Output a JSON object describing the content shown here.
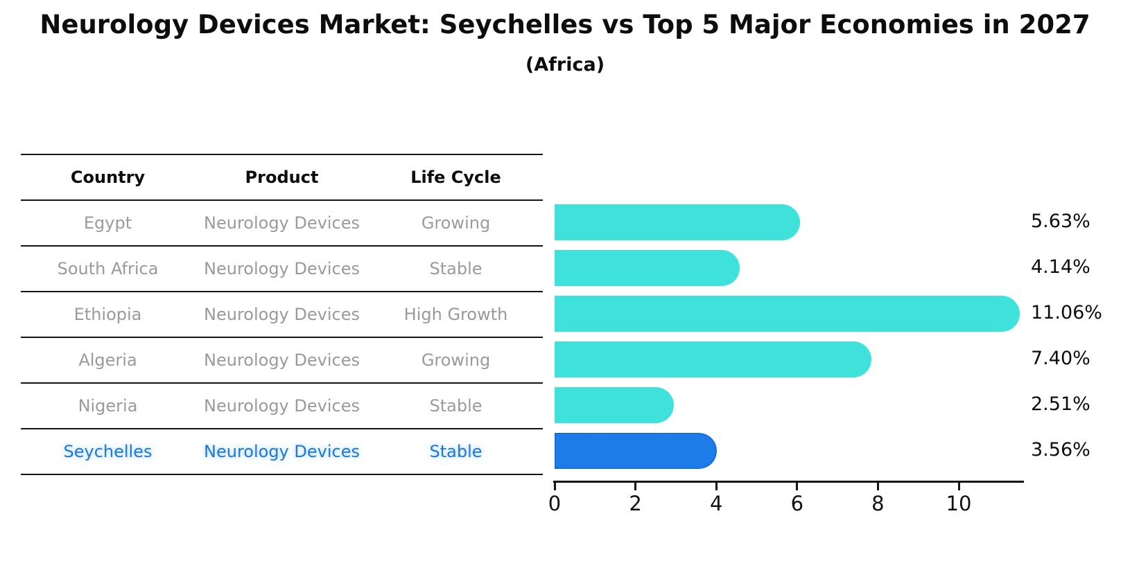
{
  "title": "Neurology Devices Market: Seychelles vs Top 5 Major Economies in 2027",
  "subtitle": "(Africa)",
  "table": {
    "headers": [
      "Country",
      "Product",
      "Life Cycle"
    ],
    "rows": [
      {
        "country": "Egypt",
        "product": "Neurology Devices",
        "life_cycle": "Growing"
      },
      {
        "country": "South Africa",
        "product": "Neurology Devices",
        "life_cycle": "Stable"
      },
      {
        "country": "Ethiopia",
        "product": "Neurology Devices",
        "life_cycle": "High Growth"
      },
      {
        "country": "Algeria",
        "product": "Neurology Devices",
        "life_cycle": "Growing"
      },
      {
        "country": "Nigeria",
        "product": "Neurology Devices",
        "life_cycle": "Stable"
      },
      {
        "country": "Seychelles",
        "product": "Neurology Devices",
        "life_cycle": "Stable"
      }
    ]
  },
  "chart_data": {
    "type": "bar",
    "orientation": "horizontal",
    "title": "Neurology Devices Market: Seychelles vs Top 5 Major Economies in 2027 (Africa)",
    "categories": [
      "Egypt",
      "South Africa",
      "Ethiopia",
      "Algeria",
      "Nigeria",
      "Seychelles"
    ],
    "values": [
      5.63,
      4.14,
      11.06,
      7.4,
      2.51,
      3.56
    ],
    "value_labels": [
      "5.63%",
      "4.14%",
      "11.06%",
      "7.40%",
      "2.51%",
      "3.56%"
    ],
    "xticks": [
      0,
      2,
      4,
      6,
      8,
      10
    ],
    "xlim": [
      0,
      11.7
    ],
    "grid": false,
    "legend": "none",
    "bar_color": "#3FE2DB",
    "highlight_color": "#1E7CE8",
    "highlight_index": 5,
    "highlight_category": "Seychelles"
  },
  "colors": {
    "background": "#FFFFFF",
    "bar_cyan": "#3FE2DB",
    "bar_blue": "#1E7CE8",
    "highlight_border": "#1360CF",
    "highlight_text": "#2278D2",
    "table_text_gray": "#9A9A9A",
    "axis_black": "#141414"
  }
}
